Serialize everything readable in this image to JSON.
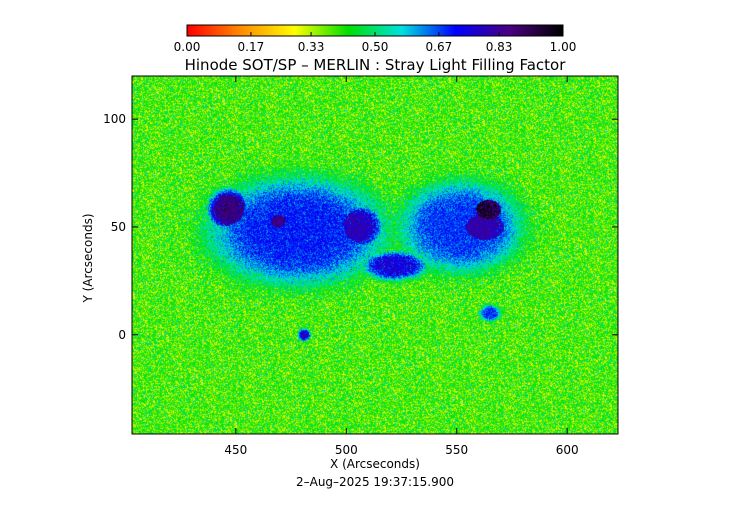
{
  "chart_data": {
    "type": "heatmap",
    "title": "Hinode SOT/SP – MERLIN : Stray Light Filling Factor",
    "xlabel": "X (Arcseconds)",
    "ylabel": "Y (Arcseconds)",
    "timestamp": "2–Aug–2025 19:37:15.900",
    "xlim": [
      403,
      623
    ],
    "ylim": [
      -46,
      120
    ],
    "x_ticks": [
      450,
      500,
      550,
      600
    ],
    "x_tick_labels": [
      "450",
      "500",
      "550",
      "600"
    ],
    "y_ticks": [
      0,
      50,
      100
    ],
    "y_tick_labels": [
      "0",
      "50",
      "100"
    ],
    "colorbar": {
      "range": [
        0.0,
        1.0
      ],
      "tick_values": [
        0.0,
        0.17,
        0.33,
        0.5,
        0.67,
        0.83,
        1.0
      ],
      "tick_labels": [
        "0.00",
        "0.17",
        "0.33",
        "0.50",
        "0.67",
        "0.83",
        "1.00"
      ],
      "colors": [
        "#ff0000",
        "#ff8c00",
        "#ffff00",
        "#00e000",
        "#00e0e0",
        "#0000ff",
        "#4b0082",
        "#000000"
      ]
    },
    "background_fill": 0.4,
    "regions": [
      {
        "name": "leading-spot-umbra",
        "center": [
          563,
          57
        ],
        "radius": [
          10,
          8
        ],
        "fill": 0.98
      },
      {
        "name": "leading-spot-penumbra",
        "center": [
          556,
          50
        ],
        "radius": [
          23,
          17
        ],
        "fill": 0.84
      },
      {
        "name": "leading-spot-halo",
        "center": [
          552,
          50
        ],
        "radius": [
          29,
          22
        ],
        "fill": 0.7
      },
      {
        "name": "trailing-plage-west",
        "center": [
          447,
          58
        ],
        "radius": [
          10,
          10
        ],
        "fill": 0.9
      },
      {
        "name": "trailing-plage-core",
        "center": [
          470,
          52
        ],
        "radius": [
          12,
          10
        ],
        "fill": 0.88
      },
      {
        "name": "trailing-plage-east",
        "center": [
          505,
          50
        ],
        "radius": [
          12,
          11
        ],
        "fill": 0.82
      },
      {
        "name": "trailing-region-halo",
        "center": [
          478,
          48
        ],
        "radius": [
          42,
          26
        ],
        "fill": 0.72
      },
      {
        "name": "central-bridge",
        "center": [
          522,
          32
        ],
        "radius": [
          15,
          7
        ],
        "fill": 0.78
      },
      {
        "name": "south-knot",
        "center": [
          565,
          10
        ],
        "radius": [
          5,
          4
        ],
        "fill": 0.7
      },
      {
        "name": "south-dot",
        "center": [
          481,
          0
        ],
        "radius": [
          3,
          3
        ],
        "fill": 0.8
      }
    ]
  }
}
